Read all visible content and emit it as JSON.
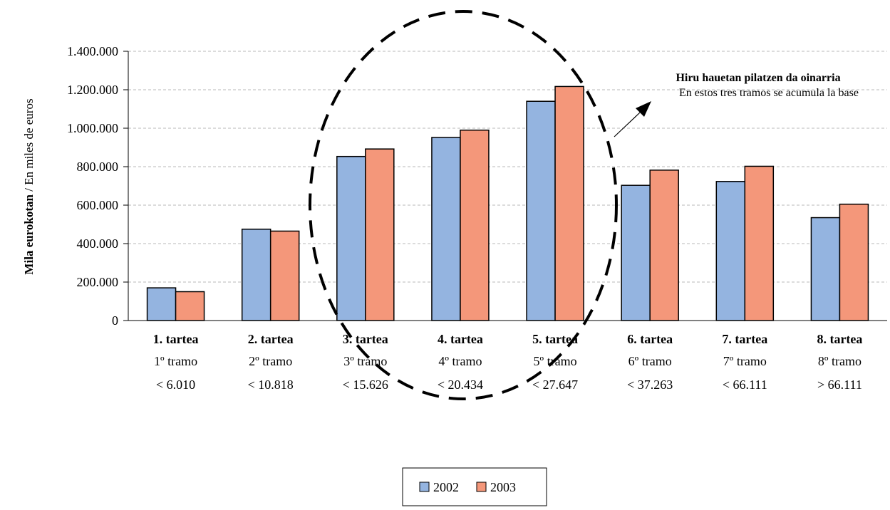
{
  "chart_data": {
    "type": "bar",
    "categories": [
      {
        "name": "1. tartea",
        "sub": "1º tramo",
        "range": "< 6.010"
      },
      {
        "name": "2. tartea",
        "sub": "2º tramo",
        "range": "< 10.818"
      },
      {
        "name": "3. tartea",
        "sub": "3º tramo",
        "range": "< 15.626"
      },
      {
        "name": "4. tartea",
        "sub": "4º tramo",
        "range": "< 20.434"
      },
      {
        "name": "5. tartea",
        "sub": "5º tramo",
        "range": "< 27.647"
      },
      {
        "name": "6. tartea",
        "sub": "6º tramo",
        "range": "< 37.263"
      },
      {
        "name": "7. tartea",
        "sub": "7º tramo",
        "range": "< 66.111"
      },
      {
        "name": "8. tartea",
        "sub": "8º tramo",
        "range": "> 66.111"
      }
    ],
    "series": [
      {
        "name": "2002",
        "color": "#94b4e0",
        "values": [
          170000,
          475000,
          853000,
          952000,
          1140000,
          703000,
          723000,
          535000
        ]
      },
      {
        "name": "2003",
        "color": "#f4977a",
        "values": [
          150000,
          465000,
          892000,
          990000,
          1217000,
          782000,
          802000,
          605000
        ]
      }
    ],
    "ylabel_bold": "Mila eurokotan",
    "ylabel_rest": " / En miles de euros",
    "ylim": [
      0,
      1400000
    ],
    "yticks": [
      {
        "value": 0,
        "label": "0"
      },
      {
        "value": 200000,
        "label": "200.000"
      },
      {
        "value": 400000,
        "label": "400.000"
      },
      {
        "value": 600000,
        "label": "600.000"
      },
      {
        "value": 800000,
        "label": "800.000"
      },
      {
        "value": 1000000,
        "label": "1.000.000"
      },
      {
        "value": 1200000,
        "label": "1.200.000"
      },
      {
        "value": 1400000,
        "label": "1.400.000"
      }
    ],
    "grid": true,
    "legend_position": "bottom-center",
    "annotation": {
      "title": "Hiru hauetan pilatzen da oinarria",
      "subtitle": "En estos tres tramos se acumula la base",
      "highlighted_categories": [
        "3. tartea",
        "4. tartea",
        "5. tartea"
      ]
    }
  }
}
